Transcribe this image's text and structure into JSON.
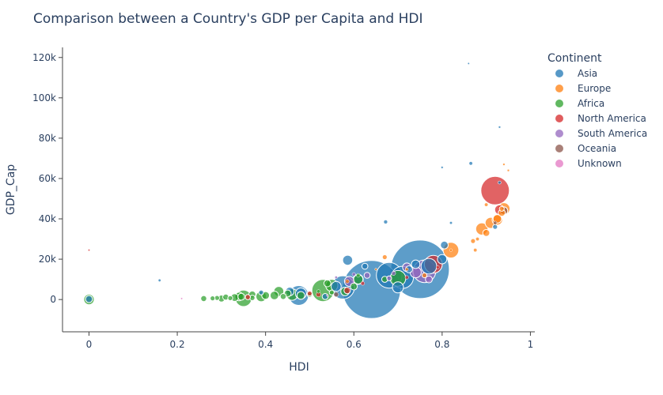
{
  "chart_data": {
    "type": "scatter",
    "title": "Comparison between a Country's GDP per Capita and HDI",
    "xlabel": "HDI",
    "ylabel": "GDP_Cap",
    "xlim": [
      -0.06,
      1.01
    ],
    "ylim": [
      -16000,
      125000
    ],
    "x_ticks": [
      0,
      0.2,
      0.4,
      0.6,
      0.8,
      1
    ],
    "x_tick_labels": [
      "0",
      "0.2",
      "0.4",
      "0.6",
      "0.8",
      "1"
    ],
    "y_ticks": [
      0,
      20000,
      40000,
      60000,
      80000,
      100000,
      120000
    ],
    "y_tick_labels": [
      "0",
      "20k",
      "40k",
      "60k",
      "80k",
      "100k",
      "120k"
    ],
    "grid": false,
    "legend_title": "Continent",
    "legend_position": "right",
    "series": [
      {
        "name": "Asia",
        "color": "#1f77b4",
        "points": [
          [
            0.64,
            5000,
            1380
          ],
          [
            0.75,
            15000,
            1400
          ],
          [
            0.68,
            12000,
            270
          ],
          [
            0.575,
            6000,
            220
          ],
          [
            0.475,
            2000,
            160
          ],
          [
            0.71,
            11000,
            200
          ],
          [
            0.672,
            38500,
            6
          ],
          [
            0.586,
            19500,
            40
          ],
          [
            0.77,
            16500,
            100
          ],
          [
            0.8,
            20000,
            35
          ],
          [
            0.93,
            85500,
            2
          ],
          [
            0.865,
            67500,
            5
          ],
          [
            0.8,
            65500,
            2
          ],
          [
            0.93,
            58000,
            4
          ],
          [
            0.805,
            27000,
            25
          ],
          [
            0.86,
            117000,
            1
          ],
          [
            0.16,
            9500,
            3
          ],
          [
            0.0,
            200,
            20
          ],
          [
            0.92,
            36000,
            10
          ],
          [
            0.7,
            6000,
            50
          ],
          [
            0.455,
            4000,
            30
          ],
          [
            0.535,
            1500,
            15
          ],
          [
            0.39,
            3500,
            10
          ],
          [
            0.61,
            10000,
            40
          ],
          [
            0.725,
            15000,
            20
          ],
          [
            0.74,
            17500,
            30
          ],
          [
            0.82,
            38000,
            3
          ],
          [
            0.625,
            16500,
            15
          ],
          [
            0.56,
            6500,
            40
          ],
          [
            0.48,
            3000,
            50
          ]
        ]
      },
      {
        "name": "Europe",
        "color": "#ff7f0e",
        "points": [
          [
            0.82,
            24500,
            100
          ],
          [
            0.94,
            45000,
            60
          ],
          [
            0.925,
            39500,
            45
          ],
          [
            0.91,
            38000,
            50
          ],
          [
            0.89,
            35000,
            60
          ],
          [
            0.935,
            43000,
            20
          ],
          [
            0.94,
            67000,
            2
          ],
          [
            0.95,
            64000,
            2
          ],
          [
            0.67,
            21000,
            10
          ],
          [
            0.88,
            30000,
            5
          ],
          [
            0.82,
            24500,
            3
          ],
          [
            0.585,
            9000,
            6
          ],
          [
            0.72,
            15000,
            4
          ],
          [
            0.9,
            47000,
            5
          ],
          [
            0.935,
            45000,
            10
          ],
          [
            0.87,
            29000,
            10
          ],
          [
            0.9,
            33000,
            20
          ],
          [
            0.875,
            24500,
            5
          ],
          [
            0.65,
            15000,
            2
          ],
          [
            0.925,
            40000,
            30
          ],
          [
            0.76,
            12000,
            10
          ]
        ]
      },
      {
        "name": "Africa",
        "color": "#2ca02c",
        "points": [
          [
            0.53,
            4500,
            200
          ],
          [
            0.35,
            600,
            110
          ],
          [
            0.7,
            10500,
            100
          ],
          [
            0.46,
            2500,
            55
          ],
          [
            0.39,
            1500,
            45
          ],
          [
            0.43,
            4000,
            40
          ],
          [
            0.55,
            7000,
            60
          ],
          [
            0.26,
            500,
            15
          ],
          [
            0.3,
            500,
            20
          ],
          [
            0.33,
            1000,
            25
          ],
          [
            0.42,
            2000,
            30
          ],
          [
            0.31,
            1200,
            15
          ],
          [
            0.37,
            2500,
            20
          ],
          [
            0.0,
            0,
            45
          ],
          [
            0.58,
            4000,
            30
          ],
          [
            0.61,
            10000,
            35
          ],
          [
            0.29,
            800,
            10
          ],
          [
            0.32,
            700,
            10
          ],
          [
            0.345,
            1400,
            20
          ],
          [
            0.44,
            1500,
            15
          ],
          [
            0.48,
            2000,
            25
          ],
          [
            0.5,
            2500,
            12
          ],
          [
            0.4,
            2000,
            25
          ],
          [
            0.28,
            600,
            10
          ],
          [
            0.37,
            800,
            12
          ],
          [
            0.55,
            3500,
            10
          ],
          [
            0.61,
            12000,
            6
          ],
          [
            0.45,
            3000,
            20
          ],
          [
            0.34,
            1500,
            30
          ],
          [
            0.54,
            8000,
            20
          ],
          [
            0.6,
            6500,
            20
          ],
          [
            0.67,
            10000,
            15
          ],
          [
            0.52,
            4000,
            5
          ]
        ]
      },
      {
        "name": "North America",
        "color": "#d62728",
        "points": [
          [
            0.92,
            54000,
            330
          ],
          [
            0.78,
            17500,
            130
          ],
          [
            0.93,
            44500,
            38
          ],
          [
            0.0,
            24500,
            0.5
          ],
          [
            0.36,
            1200,
            11
          ],
          [
            0.585,
            4500,
            17
          ],
          [
            0.52,
            2500,
            9
          ],
          [
            0.62,
            8000,
            6
          ],
          [
            0.72,
            11000,
            5
          ],
          [
            0.79,
            16000,
            4
          ],
          [
            0.5,
            3000,
            10
          ]
        ]
      },
      {
        "name": "South America",
        "color": "#9467bd",
        "points": [
          [
            0.76,
            14000,
            210
          ],
          [
            0.74,
            13500,
            50
          ],
          [
            0.72,
            16000,
            30
          ],
          [
            0.59,
            9000,
            40
          ],
          [
            0.68,
            10500,
            10
          ],
          [
            0.63,
            12000,
            15
          ],
          [
            0.6,
            12500,
            5
          ],
          [
            0.56,
            11000,
            3
          ],
          [
            0.77,
            10000,
            20
          ],
          [
            0.69,
            13000,
            7
          ]
        ]
      },
      {
        "name": "Oceania",
        "color": "#8c564b",
        "points": [
          [
            0.94,
            44000,
            25
          ],
          [
            0.92,
            38000,
            5
          ],
          [
            0.56,
            2500,
            9
          ]
        ]
      },
      {
        "name": "Unknown",
        "color": "#e377c2",
        "points": [
          [
            0.54,
            2000,
            1
          ],
          [
            0.21,
            500,
            1
          ]
        ]
      }
    ]
  }
}
